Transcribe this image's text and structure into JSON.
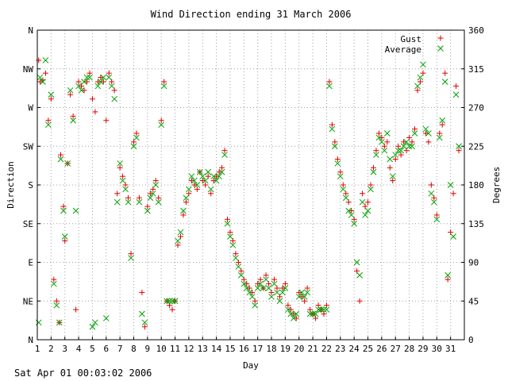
{
  "chart_data": {
    "type": "scatter",
    "title": "Wind Direction ending 31 March 2006",
    "xlabel": "Day",
    "ylabel_left": "Direction",
    "ylabel_right": "Degrees",
    "xlim": [
      1,
      32
    ],
    "ylim": [
      0,
      360
    ],
    "x_ticks": [
      "1",
      "2",
      "3",
      "4",
      "5",
      "6",
      "7",
      "8",
      "9",
      "10",
      "11",
      "12",
      "13",
      "14",
      "15",
      "16",
      "17",
      "18",
      "19",
      "20",
      "21",
      "22",
      "23",
      "24",
      "25",
      "26",
      "27",
      "28",
      "29",
      "30",
      "31"
    ],
    "y_ticks_left": [
      "N",
      "NE",
      "E",
      "SE",
      "S",
      "SW",
      "W",
      "NW",
      "N"
    ],
    "y_ticks_right": [
      "0",
      "45",
      "90",
      "135",
      "180",
      "225",
      "270",
      "315",
      "360"
    ],
    "grid": true,
    "legend_position": "top-right",
    "series": [
      {
        "name": "Gust",
        "color": "#e00000",
        "marker": "plus",
        "points": [
          [
            1.1,
            325
          ],
          [
            1.2,
            300
          ],
          [
            1.4,
            302
          ],
          [
            1.6,
            310
          ],
          [
            1.8,
            255
          ],
          [
            2.0,
            280
          ],
          [
            2.2,
            70
          ],
          [
            2.4,
            45
          ],
          [
            2.6,
            20
          ],
          [
            2.7,
            215
          ],
          [
            2.9,
            155
          ],
          [
            3.0,
            115
          ],
          [
            3.2,
            205
          ],
          [
            3.4,
            285
          ],
          [
            3.6,
            260
          ],
          [
            3.8,
            35
          ],
          [
            4.0,
            300
          ],
          [
            4.2,
            295
          ],
          [
            4.4,
            290
          ],
          [
            4.6,
            300
          ],
          [
            4.8,
            310
          ],
          [
            5.0,
            280
          ],
          [
            5.2,
            265
          ],
          [
            5.4,
            300
          ],
          [
            5.6,
            305
          ],
          [
            5.8,
            300
          ],
          [
            6.0,
            255
          ],
          [
            6.2,
            310
          ],
          [
            6.4,
            300
          ],
          [
            6.6,
            290
          ],
          [
            6.8,
            170
          ],
          [
            7.0,
            200
          ],
          [
            7.2,
            190
          ],
          [
            7.4,
            180
          ],
          [
            7.6,
            165
          ],
          [
            7.8,
            100
          ],
          [
            8.0,
            230
          ],
          [
            8.2,
            240
          ],
          [
            8.4,
            165
          ],
          [
            8.6,
            55
          ],
          [
            8.8,
            15
          ],
          [
            9.0,
            155
          ],
          [
            9.2,
            170
          ],
          [
            9.4,
            175
          ],
          [
            9.6,
            185
          ],
          [
            9.8,
            165
          ],
          [
            10.0,
            255
          ],
          [
            10.2,
            300
          ],
          [
            10.4,
            45
          ],
          [
            10.6,
            40
          ],
          [
            10.8,
            35
          ],
          [
            11.0,
            45
          ],
          [
            11.2,
            110
          ],
          [
            11.4,
            120
          ],
          [
            11.6,
            145
          ],
          [
            11.8,
            160
          ],
          [
            12.0,
            170
          ],
          [
            12.2,
            185
          ],
          [
            12.4,
            180
          ],
          [
            12.6,
            175
          ],
          [
            12.8,
            195
          ],
          [
            13.0,
            185
          ],
          [
            13.2,
            180
          ],
          [
            13.4,
            190
          ],
          [
            13.6,
            170
          ],
          [
            13.8,
            185
          ],
          [
            14.0,
            190
          ],
          [
            14.2,
            195
          ],
          [
            14.4,
            200
          ],
          [
            14.6,
            220
          ],
          [
            14.8,
            140
          ],
          [
            15.0,
            125
          ],
          [
            15.2,
            115
          ],
          [
            15.4,
            100
          ],
          [
            15.6,
            90
          ],
          [
            15.8,
            80
          ],
          [
            16.0,
            70
          ],
          [
            16.2,
            65
          ],
          [
            16.4,
            60
          ],
          [
            16.6,
            55
          ],
          [
            16.8,
            45
          ],
          [
            17.0,
            65
          ],
          [
            17.2,
            70
          ],
          [
            17.4,
            60
          ],
          [
            17.6,
            75
          ],
          [
            17.8,
            65
          ],
          [
            18.0,
            55
          ],
          [
            18.2,
            70
          ],
          [
            18.4,
            60
          ],
          [
            18.6,
            50
          ],
          [
            18.8,
            60
          ],
          [
            19.0,
            65
          ],
          [
            19.2,
            40
          ],
          [
            19.4,
            35
          ],
          [
            19.6,
            30
          ],
          [
            19.8,
            25
          ],
          [
            20.0,
            55
          ],
          [
            20.2,
            50
          ],
          [
            20.4,
            45
          ],
          [
            20.6,
            60
          ],
          [
            20.8,
            35
          ],
          [
            21.0,
            30
          ],
          [
            21.2,
            25
          ],
          [
            21.4,
            40
          ],
          [
            21.6,
            35
          ],
          [
            21.8,
            30
          ],
          [
            22.0,
            40
          ],
          [
            22.2,
            300
          ],
          [
            22.4,
            250
          ],
          [
            22.6,
            230
          ],
          [
            22.8,
            210
          ],
          [
            23.0,
            195
          ],
          [
            23.2,
            180
          ],
          [
            23.4,
            170
          ],
          [
            23.6,
            160
          ],
          [
            23.8,
            150
          ],
          [
            24.0,
            140
          ],
          [
            24.2,
            80
          ],
          [
            24.4,
            45
          ],
          [
            24.6,
            170
          ],
          [
            24.8,
            155
          ],
          [
            25.0,
            160
          ],
          [
            25.2,
            180
          ],
          [
            25.4,
            200
          ],
          [
            25.6,
            220
          ],
          [
            25.8,
            240
          ],
          [
            26.0,
            235
          ],
          [
            26.2,
            225
          ],
          [
            26.4,
            230
          ],
          [
            26.6,
            200
          ],
          [
            26.8,
            185
          ],
          [
            27.0,
            210
          ],
          [
            27.2,
            225
          ],
          [
            27.4,
            215
          ],
          [
            27.6,
            230
          ],
          [
            27.8,
            220
          ],
          [
            28.0,
            235
          ],
          [
            28.2,
            230
          ],
          [
            28.4,
            245
          ],
          [
            28.6,
            290
          ],
          [
            28.8,
            300
          ],
          [
            29.0,
            310
          ],
          [
            29.2,
            240
          ],
          [
            29.4,
            230
          ],
          [
            29.6,
            180
          ],
          [
            29.8,
            165
          ],
          [
            30.0,
            145
          ],
          [
            30.2,
            240
          ],
          [
            30.4,
            250
          ],
          [
            30.6,
            310
          ],
          [
            30.8,
            70
          ],
          [
            31.0,
            125
          ],
          [
            31.2,
            170
          ],
          [
            31.4,
            295
          ],
          [
            31.6,
            220
          ]
        ]
      },
      {
        "name": "Average",
        "color": "#00a000",
        "marker": "cross",
        "points": [
          [
            1.1,
            20
          ],
          [
            1.2,
            305
          ],
          [
            1.4,
            300
          ],
          [
            1.6,
            325
          ],
          [
            1.8,
            250
          ],
          [
            2.0,
            285
          ],
          [
            2.2,
            65
          ],
          [
            2.4,
            40
          ],
          [
            2.6,
            20
          ],
          [
            2.7,
            210
          ],
          [
            2.9,
            150
          ],
          [
            3.0,
            120
          ],
          [
            3.2,
            205
          ],
          [
            3.4,
            290
          ],
          [
            3.6,
            255
          ],
          [
            3.8,
            150
          ],
          [
            4.0,
            295
          ],
          [
            4.2,
            290
          ],
          [
            4.4,
            300
          ],
          [
            4.6,
            305
          ],
          [
            4.8,
            305
          ],
          [
            5.0,
            15
          ],
          [
            5.2,
            20
          ],
          [
            5.4,
            295
          ],
          [
            5.6,
            300
          ],
          [
            5.8,
            305
          ],
          [
            6.0,
            25
          ],
          [
            6.2,
            305
          ],
          [
            6.4,
            295
          ],
          [
            6.6,
            280
          ],
          [
            6.8,
            160
          ],
          [
            7.0,
            205
          ],
          [
            7.2,
            185
          ],
          [
            7.4,
            175
          ],
          [
            7.6,
            160
          ],
          [
            7.8,
            95
          ],
          [
            8.0,
            225
          ],
          [
            8.2,
            235
          ],
          [
            8.4,
            160
          ],
          [
            8.6,
            30
          ],
          [
            8.8,
            20
          ],
          [
            9.0,
            150
          ],
          [
            9.2,
            165
          ],
          [
            9.4,
            170
          ],
          [
            9.6,
            180
          ],
          [
            9.8,
            160
          ],
          [
            10.0,
            250
          ],
          [
            10.2,
            295
          ],
          [
            10.4,
            45
          ],
          [
            10.6,
            45
          ],
          [
            10.8,
            45
          ],
          [
            11.0,
            45
          ],
          [
            11.2,
            115
          ],
          [
            11.4,
            125
          ],
          [
            11.6,
            150
          ],
          [
            11.8,
            165
          ],
          [
            12.0,
            175
          ],
          [
            12.2,
            190
          ],
          [
            12.4,
            185
          ],
          [
            12.6,
            180
          ],
          [
            12.8,
            195
          ],
          [
            13.0,
            190
          ],
          [
            13.2,
            185
          ],
          [
            13.4,
            195
          ],
          [
            13.6,
            175
          ],
          [
            13.8,
            190
          ],
          [
            14.0,
            185
          ],
          [
            14.2,
            190
          ],
          [
            14.4,
            195
          ],
          [
            14.6,
            215
          ],
          [
            14.8,
            135
          ],
          [
            15.0,
            120
          ],
          [
            15.2,
            110
          ],
          [
            15.4,
            95
          ],
          [
            15.6,
            85
          ],
          [
            15.8,
            75
          ],
          [
            16.0,
            65
          ],
          [
            16.2,
            60
          ],
          [
            16.4,
            55
          ],
          [
            16.6,
            50
          ],
          [
            16.8,
            40
          ],
          [
            17.0,
            60
          ],
          [
            17.2,
            65
          ],
          [
            17.4,
            60
          ],
          [
            17.6,
            70
          ],
          [
            17.8,
            60
          ],
          [
            18.0,
            50
          ],
          [
            18.2,
            65
          ],
          [
            18.4,
            55
          ],
          [
            18.6,
            45
          ],
          [
            18.8,
            55
          ],
          [
            19.0,
            60
          ],
          [
            19.2,
            35
          ],
          [
            19.4,
            30
          ],
          [
            19.6,
            25
          ],
          [
            19.8,
            30
          ],
          [
            20.0,
            50
          ],
          [
            20.2,
            55
          ],
          [
            20.4,
            50
          ],
          [
            20.6,
            55
          ],
          [
            20.8,
            30
          ],
          [
            21.0,
            30
          ],
          [
            21.2,
            30
          ],
          [
            21.4,
            35
          ],
          [
            21.6,
            35
          ],
          [
            21.8,
            35
          ],
          [
            22.0,
            35
          ],
          [
            22.2,
            295
          ],
          [
            22.4,
            245
          ],
          [
            22.6,
            225
          ],
          [
            22.8,
            205
          ],
          [
            23.0,
            190
          ],
          [
            23.2,
            175
          ],
          [
            23.4,
            165
          ],
          [
            23.6,
            150
          ],
          [
            23.8,
            145
          ],
          [
            24.0,
            135
          ],
          [
            24.2,
            90
          ],
          [
            24.4,
            75
          ],
          [
            24.6,
            160
          ],
          [
            24.8,
            145
          ],
          [
            25.0,
            150
          ],
          [
            25.2,
            175
          ],
          [
            25.4,
            195
          ],
          [
            25.6,
            215
          ],
          [
            25.8,
            235
          ],
          [
            26.0,
            230
          ],
          [
            26.2,
            220
          ],
          [
            26.4,
            240
          ],
          [
            26.6,
            210
          ],
          [
            26.8,
            190
          ],
          [
            27.0,
            215
          ],
          [
            27.2,
            220
          ],
          [
            27.4,
            220
          ],
          [
            27.6,
            225
          ],
          [
            27.8,
            230
          ],
          [
            28.0,
            225
          ],
          [
            28.2,
            225
          ],
          [
            28.4,
            240
          ],
          [
            28.6,
            295
          ],
          [
            28.8,
            305
          ],
          [
            29.0,
            320
          ],
          [
            29.2,
            245
          ],
          [
            29.4,
            240
          ],
          [
            29.6,
            170
          ],
          [
            29.8,
            160
          ],
          [
            30.0,
            140
          ],
          [
            30.2,
            235
          ],
          [
            30.4,
            255
          ],
          [
            30.6,
            300
          ],
          [
            30.8,
            75
          ],
          [
            31.0,
            180
          ],
          [
            31.2,
            120
          ],
          [
            31.4,
            285
          ],
          [
            31.6,
            225
          ]
        ]
      }
    ]
  },
  "footer": {
    "timestamp": "Sat Apr 01 00:03:02 2006"
  }
}
